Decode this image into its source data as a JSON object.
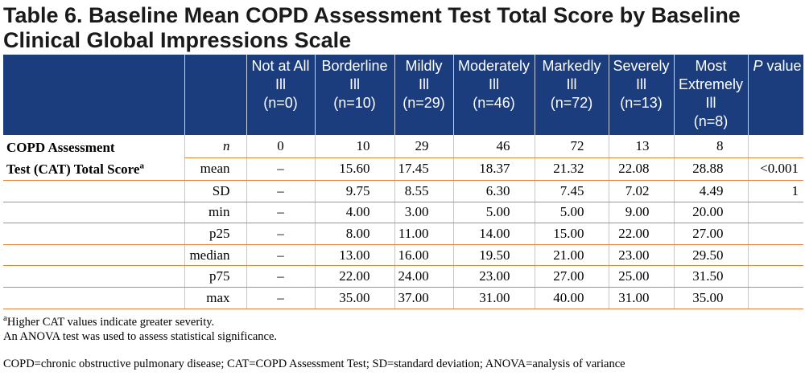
{
  "title": "Table 6. Baseline Mean COPD Assessment Test Total Score by Baseline Clinical Global Impressions Scale",
  "columns": [
    {
      "l1": "Not at All",
      "l2": "Ill",
      "l3": "(n=0)",
      "l4": ""
    },
    {
      "l1": "Borderline",
      "l2": "Ill",
      "l3": "(n=10)",
      "l4": ""
    },
    {
      "l1": "Mildly",
      "l2": "Ill",
      "l3": "(n=29)",
      "l4": ""
    },
    {
      "l1": "Moderately",
      "l2": "Ill",
      "l3": "(n=46)",
      "l4": ""
    },
    {
      "l1": "Markedly",
      "l2": "Ill",
      "l3": "(n=72)",
      "l4": ""
    },
    {
      "l1": "Severely",
      "l2": "Ill",
      "l3": "(n=13)",
      "l4": ""
    },
    {
      "l1": "Most",
      "l2": "Extremely",
      "l3": "Ill",
      "l4": "(n=8)"
    }
  ],
  "pvalue_header": {
    "italic": "P",
    "rest": " value"
  },
  "row_label": {
    "line1": "COPD Assessment",
    "line2": "Test (CAT) Total Score",
    "sup": "a"
  },
  "rows": [
    {
      "stat": "n",
      "values": [
        "0",
        "10",
        "29",
        "46",
        "72",
        "13",
        "8"
      ],
      "p": ""
    },
    {
      "stat": "mean",
      "values": [
        "–",
        "15.60",
        "17.45",
        "18.37",
        "21.32",
        "22.08",
        "28.88"
      ],
      "p": "<0.001"
    },
    {
      "stat": "SD",
      "values": [
        "–",
        "9.75",
        "8.55",
        "6.30",
        "7.45",
        "7.02",
        "4.49"
      ],
      "p": "1"
    },
    {
      "stat": "min",
      "values": [
        "–",
        "4.00",
        "3.00",
        "5.00",
        "5.00",
        "9.00",
        "20.00"
      ],
      "p": ""
    },
    {
      "stat": "p25",
      "values": [
        "–",
        "8.00",
        "11.00",
        "14.00",
        "15.00",
        "22.00",
        "27.00"
      ],
      "p": ""
    },
    {
      "stat": "median",
      "values": [
        "–",
        "13.00",
        "16.00",
        "19.50",
        "21.00",
        "23.00",
        "29.50"
      ],
      "p": ""
    },
    {
      "stat": "p75",
      "values": [
        "–",
        "22.00",
        "24.00",
        "23.00",
        "27.00",
        "25.00",
        "31.50"
      ],
      "p": ""
    },
    {
      "stat": "max",
      "values": [
        "–",
        "35.00",
        "37.00",
        "31.00",
        "40.00",
        "31.00",
        "35.00"
      ],
      "p": ""
    }
  ],
  "footnotes": {
    "sup": "a",
    "note_a": "Higher CAT values indicate greater severity.",
    "anova": "An ANOVA test was used to assess statistical significance.",
    "abbrev": "COPD=chronic obstructive pulmonary disease; CAT=COPD Assessment Test; SD=standard deviation; ANOVA=analysis of variance"
  },
  "colors": {
    "header_bg": "#1b3d7e",
    "row_rule": "#e5833a"
  }
}
